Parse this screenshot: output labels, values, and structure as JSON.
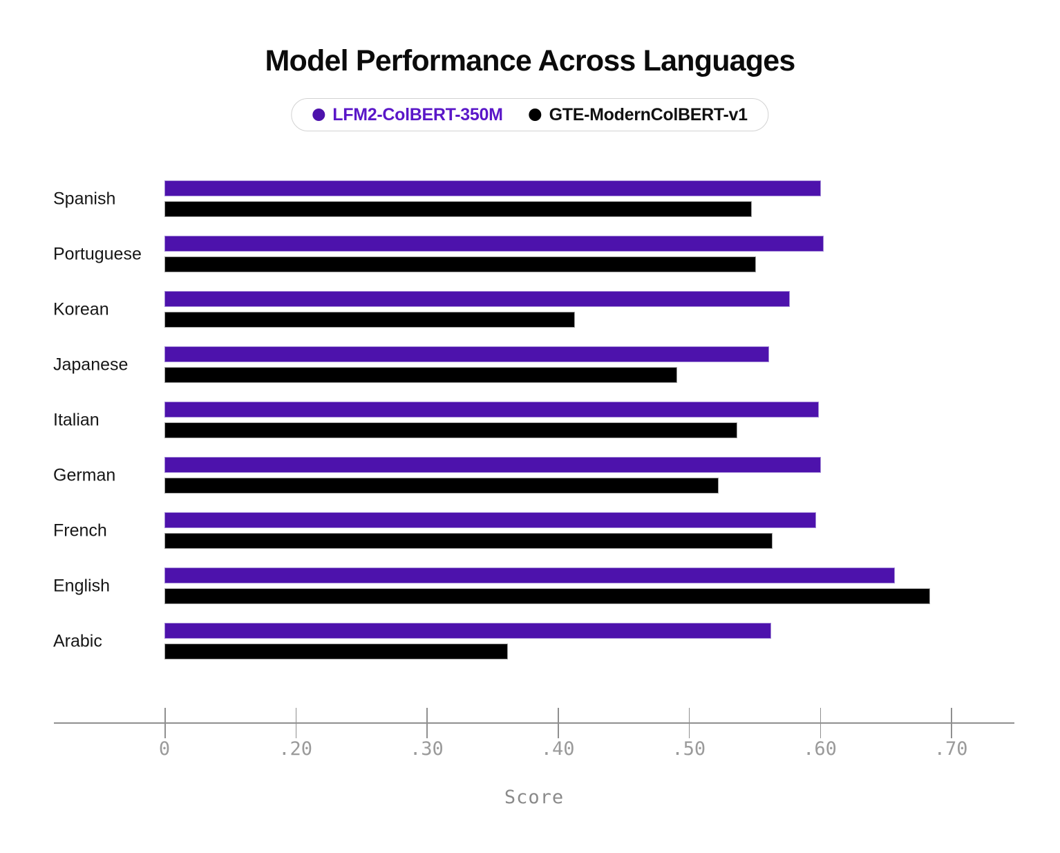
{
  "title": "Model Performance Across Languages",
  "legend": {
    "items": [
      {
        "label": "LFM2-ColBERT-350M",
        "dot_color": "#4D12AC",
        "text_color": "#5A17C8"
      },
      {
        "label": "GTE-ModernColBERT-v1",
        "dot_color": "#000000",
        "text_color": "#111111"
      }
    ]
  },
  "colors": {
    "purple_bar": "#4D12AC",
    "black_bar": "#000000",
    "axis": "#8f8f8f",
    "tick_label": "#9a9a9a",
    "xlabel": "#8a8a8a"
  },
  "chart_data": {
    "type": "bar",
    "orientation": "horizontal",
    "title": "Model Performance Across Languages",
    "xlabel": "Score",
    "ylabel": "",
    "categories": [
      "Spanish",
      "Portuguese",
      "Korean",
      "Japanese",
      "Italian",
      "German",
      "French",
      "English",
      "Arabic"
    ],
    "series": [
      {
        "name": "LFM2-ColBERT-350M",
        "color": "#4D12AC",
        "values": [
          0.601,
          0.603,
          0.577,
          0.561,
          0.599,
          0.601,
          0.597,
          0.657,
          0.563
        ]
      },
      {
        "name": "GTE-ModernColBERT-v1",
        "color": "#000000",
        "values": [
          0.548,
          0.551,
          0.413,
          0.491,
          0.537,
          0.523,
          0.564,
          0.684,
          0.362
        ]
      }
    ],
    "x_ticks": [
      0,
      0.2,
      0.3,
      0.4,
      0.5,
      0.6,
      0.7
    ],
    "x_tick_labels": [
      "0",
      ".20",
      ".30",
      ".40",
      ".50",
      ".60",
      ".70"
    ],
    "xlim": [
      0,
      0.75
    ],
    "axis_note": "broken axis: the 0-to-0.20 range is compressed to the width of a single 0.10 segment",
    "grid": false,
    "legend_position": "top-center"
  }
}
